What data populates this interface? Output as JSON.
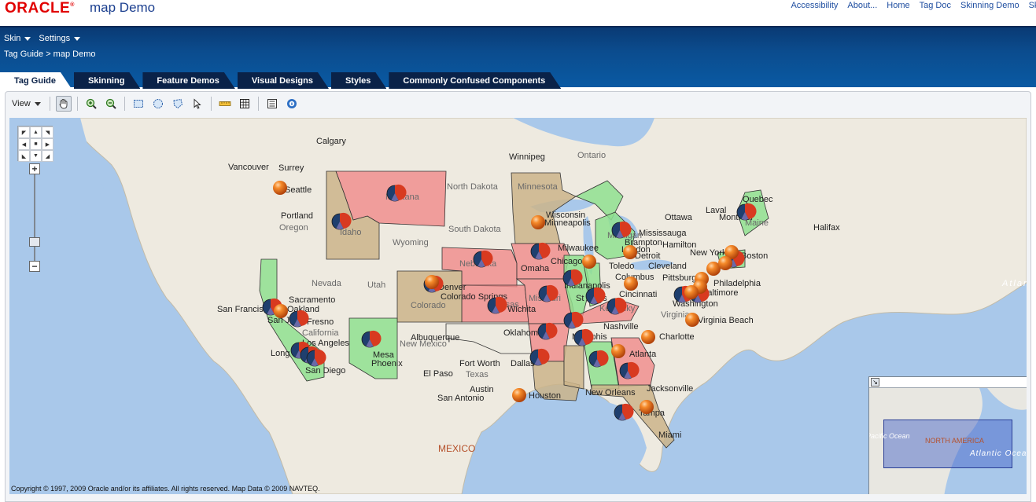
{
  "header": {
    "logo_text": "ORACLE",
    "app_title": "map Demo",
    "links": [
      "Accessibility",
      "About...",
      "Home",
      "Tag Doc",
      "Skinning Demo",
      "Skin"
    ]
  },
  "menus": {
    "skin": "Skin",
    "settings": "Settings"
  },
  "breadcrumb": "Tag Guide > map Demo",
  "tabs": [
    "Tag Guide",
    "Skinning",
    "Feature Demos",
    "Visual Designs",
    "Styles",
    "Commonly Confused Components"
  ],
  "active_tab": "Tag Guide",
  "toolbar": {
    "view_label": "View",
    "tools": [
      "pan-tool-icon",
      "zoom-in-icon",
      "zoom-out-icon",
      "rectangle-select-icon",
      "circle-select-icon",
      "polygon-select-icon",
      "pointer-select-icon",
      "distance-tool-icon",
      "area-tool-icon",
      "legend-icon",
      "info-icon"
    ]
  },
  "map": {
    "copyright": "Copyright © 1997, 2009 Oracle and/or its affiliates. All rights reserved. Map Data © 2009 NAVTEQ.",
    "colors": {
      "water": "#a9c8ea",
      "land": "#eeeae0",
      "red_state": "#f08a8a",
      "green_state": "#8fe08f",
      "tan_state": "#cbb48a",
      "pie_blue": "#1f3f6e",
      "pie_red": "#d83a20",
      "marker": "#e8650f"
    },
    "cities": [
      "Calgary",
      "Winnipeg",
      "Ontario",
      "Vancouver",
      "Surrey",
      "Seattle",
      "Portland",
      "Oregon",
      "Idaho",
      "Montana",
      "North Dakota",
      "Minnesota",
      "Wisconsin",
      "Minneapolis",
      "South Dakota",
      "Wyoming",
      "Nebraska",
      "Omaha",
      "Nevada",
      "Utah",
      "Denver",
      "Colorado Springs",
      "Colorado",
      "Kansas",
      "Wichita",
      "Sacramento",
      "San Francisco",
      "Oakland",
      "San Jose",
      "Fresno",
      "California",
      "Los Angeles",
      "Long Beach",
      "San Diego",
      "Mesa",
      "Phoenix",
      "New Mexico",
      "Albuquerque",
      "El Paso",
      "Texas",
      "Oklahoma",
      "Fort Worth",
      "Dallas",
      "Austin",
      "San Antonio",
      "Houston",
      "Memphis",
      "Nashville",
      "Atlanta",
      "Charlotte",
      "Jacksonville",
      "Tampa",
      "Miami",
      "Chicago",
      "Milwaukee",
      "Detroit",
      "Toledo",
      "Cleveland",
      "Columbus",
      "Indianapolis",
      "St Louis",
      "Cincinnati",
      "Kentucky",
      "Pittsburgh",
      "Philadelphia",
      "New York",
      "Boston",
      "Baltimore",
      "Washington",
      "Virginia",
      "Virginia Beach",
      "Mississauga",
      "Hamilton",
      "Brampton",
      "London",
      "Ottawa",
      "Laval",
      "Montreal",
      "Quebec",
      "Maine",
      "Halifax",
      "New Orleans",
      "MEXICO",
      "Atlantic Ocean",
      "Michigan",
      "Missouri"
    ],
    "overview": {
      "label": "NORTH AMERICA",
      "ocean": "Atlantic Ocean",
      "pacific": "Pacific Ocean"
    }
  }
}
